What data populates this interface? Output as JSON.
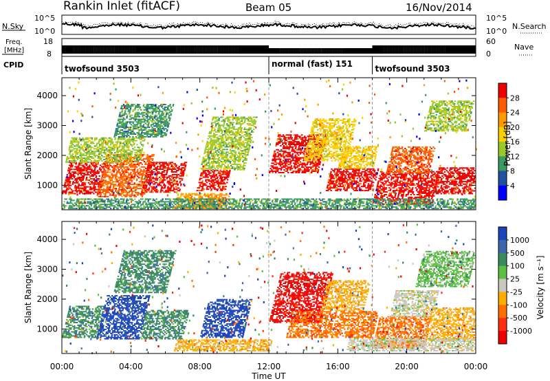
{
  "header": {
    "station": "Rankin Inlet (fitACF)",
    "beam": "Beam 05",
    "date": "16/Nov/2014"
  },
  "status_panels": {
    "nsky_label": "N.Sky",
    "nsky_ticks": [
      "10^5",
      "10^0"
    ],
    "nsearch_label": "N.Search",
    "nsearch_ticks": [
      "10^5",
      "10^0"
    ],
    "freq_label": "Freq.",
    "freq_unit": "[MHz]",
    "freq_ticks": [
      "18",
      "8"
    ],
    "nave_label": "Nave",
    "nave_ticks": [
      "60",
      "0"
    ],
    "cpid_label": "CPID",
    "cpid_segments": [
      {
        "label": "twofsound 3503",
        "start_hour": 0,
        "end_hour": 12
      },
      {
        "label": "normal (fast) 151",
        "start_hour": 12,
        "end_hour": 18
      },
      {
        "label": "twofsound 3503",
        "start_hour": 18,
        "end_hour": 24
      }
    ]
  },
  "chart_data": [
    {
      "type": "heatmap",
      "name": "power-panel",
      "ylabel": "Slant Range [km]",
      "xlabel": "Time UT",
      "x_ticks": [
        "00:00",
        "04:00",
        "08:00",
        "12:00",
        "16:00",
        "20:00",
        "00:00"
      ],
      "x_range_hours": [
        0,
        24
      ],
      "y_ticks": [
        1000,
        2000,
        3000,
        4000
      ],
      "ylim": [
        180,
        4600
      ],
      "colorbar": {
        "label": "Power [dB]",
        "ticks": [
          "28",
          "24",
          "20",
          "16",
          "12",
          "8",
          "4"
        ],
        "colors": [
          "#ee0000",
          "#ff5a00",
          "#ff9a00",
          "#ffd000",
          "#9ac82a",
          "#3a9a60",
          "#2050a0",
          "#0000ff"
        ]
      },
      "patches": [
        {
          "t0": 0.0,
          "t1": 2.2,
          "r0": 700,
          "r1": 1750,
          "c": 0
        },
        {
          "t0": 2.0,
          "t1": 4.7,
          "r0": 600,
          "r1": 2000,
          "c": 1
        },
        {
          "t0": 4.6,
          "t1": 6.8,
          "r0": 750,
          "r1": 1750,
          "c": 0
        },
        {
          "t0": 0.2,
          "t1": 4.5,
          "r0": 1750,
          "r1": 2600,
          "c": 4
        },
        {
          "t0": 3.0,
          "t1": 6.0,
          "r0": 2600,
          "r1": 3700,
          "c": 5
        },
        {
          "t0": 6.5,
          "t1": 9.5,
          "r0": 200,
          "r1": 700,
          "c": 2
        },
        {
          "t0": 7.8,
          "t1": 9.5,
          "r0": 800,
          "r1": 1500,
          "c": 0
        },
        {
          "t0": 8.0,
          "t1": 10.6,
          "r0": 1500,
          "r1": 3300,
          "c": 4
        },
        {
          "t0": 12.0,
          "t1": 14.8,
          "r0": 1400,
          "r1": 2700,
          "c": 0
        },
        {
          "t0": 14.0,
          "t1": 16.5,
          "r0": 1800,
          "r1": 3200,
          "c": 3
        },
        {
          "t0": 15.3,
          "t1": 18.0,
          "r0": 800,
          "r1": 1550,
          "c": 0
        },
        {
          "t0": 16.0,
          "t1": 18.0,
          "r0": 1550,
          "r1": 2300,
          "c": 3
        },
        {
          "t0": 18.0,
          "t1": 21.5,
          "r0": 350,
          "r1": 1450,
          "c": 0
        },
        {
          "t0": 18.8,
          "t1": 21.3,
          "r0": 1400,
          "r1": 2300,
          "c": 1
        },
        {
          "t0": 21.5,
          "t1": 24.0,
          "r0": 700,
          "r1": 1600,
          "c": 0
        },
        {
          "t0": 21.0,
          "t1": 23.5,
          "r0": 2800,
          "r1": 3800,
          "c": 4
        },
        {
          "t0": 0.0,
          "t1": 24.0,
          "r0": 200,
          "r1": 550,
          "c": 5
        }
      ]
    },
    {
      "type": "heatmap",
      "name": "velocity-panel",
      "ylabel": "Slant Range [km]",
      "xlabel": "Time UT",
      "x_ticks": [
        "00:00",
        "04:00",
        "08:00",
        "12:00",
        "16:00",
        "20:00",
        "00:00"
      ],
      "x_range_hours": [
        0,
        24
      ],
      "y_ticks": [
        1000,
        2000,
        3000,
        4000
      ],
      "ylim": [
        180,
        4600
      ],
      "colorbar": {
        "label": "Velocity [m s⁻¹]",
        "ticks": [
          "1000",
          "500",
          "100",
          "25",
          "-25",
          "-100",
          "-500",
          "-1000"
        ],
        "colors": [
          "#1a44b8",
          "#3a66b0",
          "#3a8a5e",
          "#5cc040",
          "#c8c8c0",
          "#ffae00",
          "#ff7000",
          "#ff3010",
          "#ee0000"
        ]
      },
      "patches": [
        {
          "t0": 0.0,
          "t1": 2.0,
          "r0": 700,
          "r1": 1750,
          "c": 2
        },
        {
          "t0": 2.0,
          "t1": 4.5,
          "r0": 650,
          "r1": 2100,
          "c": 0
        },
        {
          "t0": 4.5,
          "t1": 7.0,
          "r0": 650,
          "r1": 1600,
          "c": 2
        },
        {
          "t0": 3.0,
          "t1": 6.0,
          "r0": 2200,
          "r1": 3600,
          "c": 2
        },
        {
          "t0": 8.0,
          "t1": 10.5,
          "r0": 700,
          "r1": 2000,
          "c": 0
        },
        {
          "t0": 6.5,
          "t1": 12.0,
          "r0": 250,
          "r1": 650,
          "c": 5
        },
        {
          "t0": 12.0,
          "t1": 15.0,
          "r0": 1200,
          "r1": 2900,
          "c": 8
        },
        {
          "t0": 13.0,
          "t1": 18.0,
          "r0": 700,
          "r1": 1600,
          "c": 6
        },
        {
          "t0": 15.0,
          "t1": 17.5,
          "r0": 1600,
          "r1": 2600,
          "c": 5
        },
        {
          "t0": 18.0,
          "t1": 21.0,
          "r0": 350,
          "r1": 1400,
          "c": 6
        },
        {
          "t0": 19.0,
          "t1": 21.5,
          "r0": 1400,
          "r1": 2300,
          "c": 4
        },
        {
          "t0": 21.0,
          "t1": 24.0,
          "r0": 600,
          "r1": 1700,
          "c": 5
        },
        {
          "t0": 20.5,
          "t1": 23.5,
          "r0": 2400,
          "r1": 3600,
          "c": 3
        },
        {
          "t0": 16.5,
          "t1": 24.0,
          "r0": 250,
          "r1": 700,
          "c": 4
        }
      ]
    }
  ]
}
